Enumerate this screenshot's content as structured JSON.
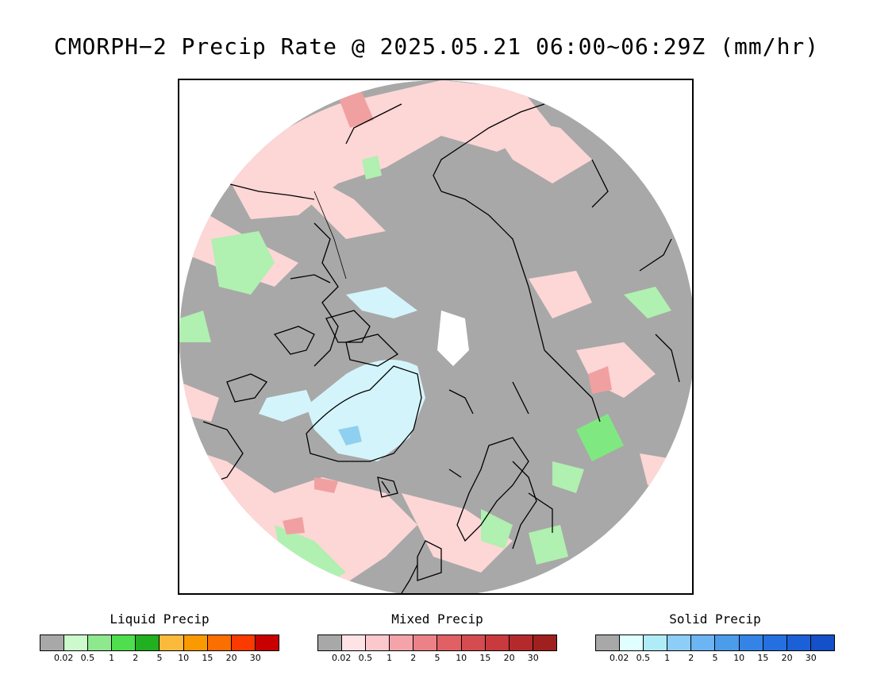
{
  "title": "CMORPH−2 Precip Rate @ 2025.05.21 06:00~06:29Z (mm/hr)",
  "map": {
    "projection": "north-polar-stereographic",
    "colors": {
      "no_precip": "#a8a8a8",
      "light_mixed": "#fdd6d6",
      "light_liquid": "#b0f0b0",
      "green_liquid": "#80e880",
      "light_solid": "#d4f4fb",
      "solid_blue": "#8fd0f0",
      "red_mixed": "#f0a0a0",
      "coast": "#000000"
    }
  },
  "legends": [
    {
      "label": "Liquid Precip",
      "colors": [
        "#a8a8a8",
        "#ccfacc",
        "#8ee88e",
        "#4ede4e",
        "#20b020",
        "#fbba3c",
        "#fb9a00",
        "#fb6e00",
        "#fb3a00",
        "#c80000"
      ],
      "ticks": [
        "0.02",
        "0.5",
        "1",
        "2",
        "5",
        "10",
        "15",
        "20",
        "30"
      ]
    },
    {
      "label": "Mixed Precip",
      "colors": [
        "#a8a8a8",
        "#fde2e6",
        "#fbc8cc",
        "#f4a4a8",
        "#ec8288",
        "#e06064",
        "#d44c50",
        "#c83a3e",
        "#b42a2c",
        "#a02020"
      ],
      "ticks": [
        "0.02",
        "0.5",
        "1",
        "2",
        "5",
        "10",
        "15",
        "20",
        "30"
      ]
    },
    {
      "label": "Solid Precip",
      "colors": [
        "#a8a8a8",
        "#e0ffff",
        "#b0ecf8",
        "#8ccef8",
        "#6cb4f4",
        "#4c9cec",
        "#3484e8",
        "#2470e0",
        "#1c60d8",
        "#1450c8"
      ],
      "ticks": [
        "0.02",
        "0.5",
        "1",
        "2",
        "5",
        "10",
        "15",
        "20",
        "30"
      ]
    }
  ]
}
